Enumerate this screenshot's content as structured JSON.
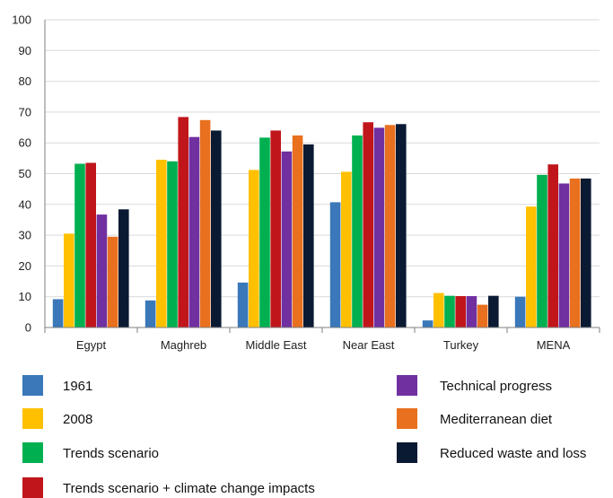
{
  "chart_data": {
    "type": "bar",
    "categories": [
      "Egypt",
      "Maghreb",
      "Middle East",
      "Near East",
      "Turkey",
      "MENA"
    ],
    "ylim": [
      0,
      100
    ],
    "yticks": [
      0,
      10,
      20,
      30,
      40,
      50,
      60,
      70,
      80,
      90,
      100
    ],
    "grid": true,
    "legend_position": "bottom",
    "series": [
      {
        "name": "1961",
        "color": "#3a78b9",
        "values": [
          9.2,
          8.8,
          14.6,
          40.7,
          2.3,
          10.0
        ]
      },
      {
        "name": "2008",
        "color": "#ffc000",
        "values": [
          30.5,
          54.5,
          51.2,
          50.6,
          11.2,
          39.3
        ]
      },
      {
        "name": "Trends scenario",
        "color": "#00b050",
        "values": [
          53.2,
          54.0,
          61.7,
          62.4,
          10.3,
          49.6
        ]
      },
      {
        "name": "Trends scenario + climate change impacts",
        "color": "#c0161b",
        "values": [
          53.5,
          68.4,
          64.0,
          66.7,
          10.2,
          53.0
        ]
      },
      {
        "name": "Technical progress",
        "color": "#7030a0",
        "values": [
          36.7,
          61.9,
          57.2,
          64.9,
          10.2,
          46.8
        ]
      },
      {
        "name": "Mediterranean diet",
        "color": "#e8701f",
        "values": [
          29.5,
          67.4,
          62.4,
          65.8,
          7.4,
          48.4
        ]
      },
      {
        "name": "Reduced waste and loss",
        "color": "#0b1a33",
        "values": [
          38.4,
          64.0,
          59.5,
          66.1,
          10.3,
          48.4
        ]
      }
    ]
  }
}
